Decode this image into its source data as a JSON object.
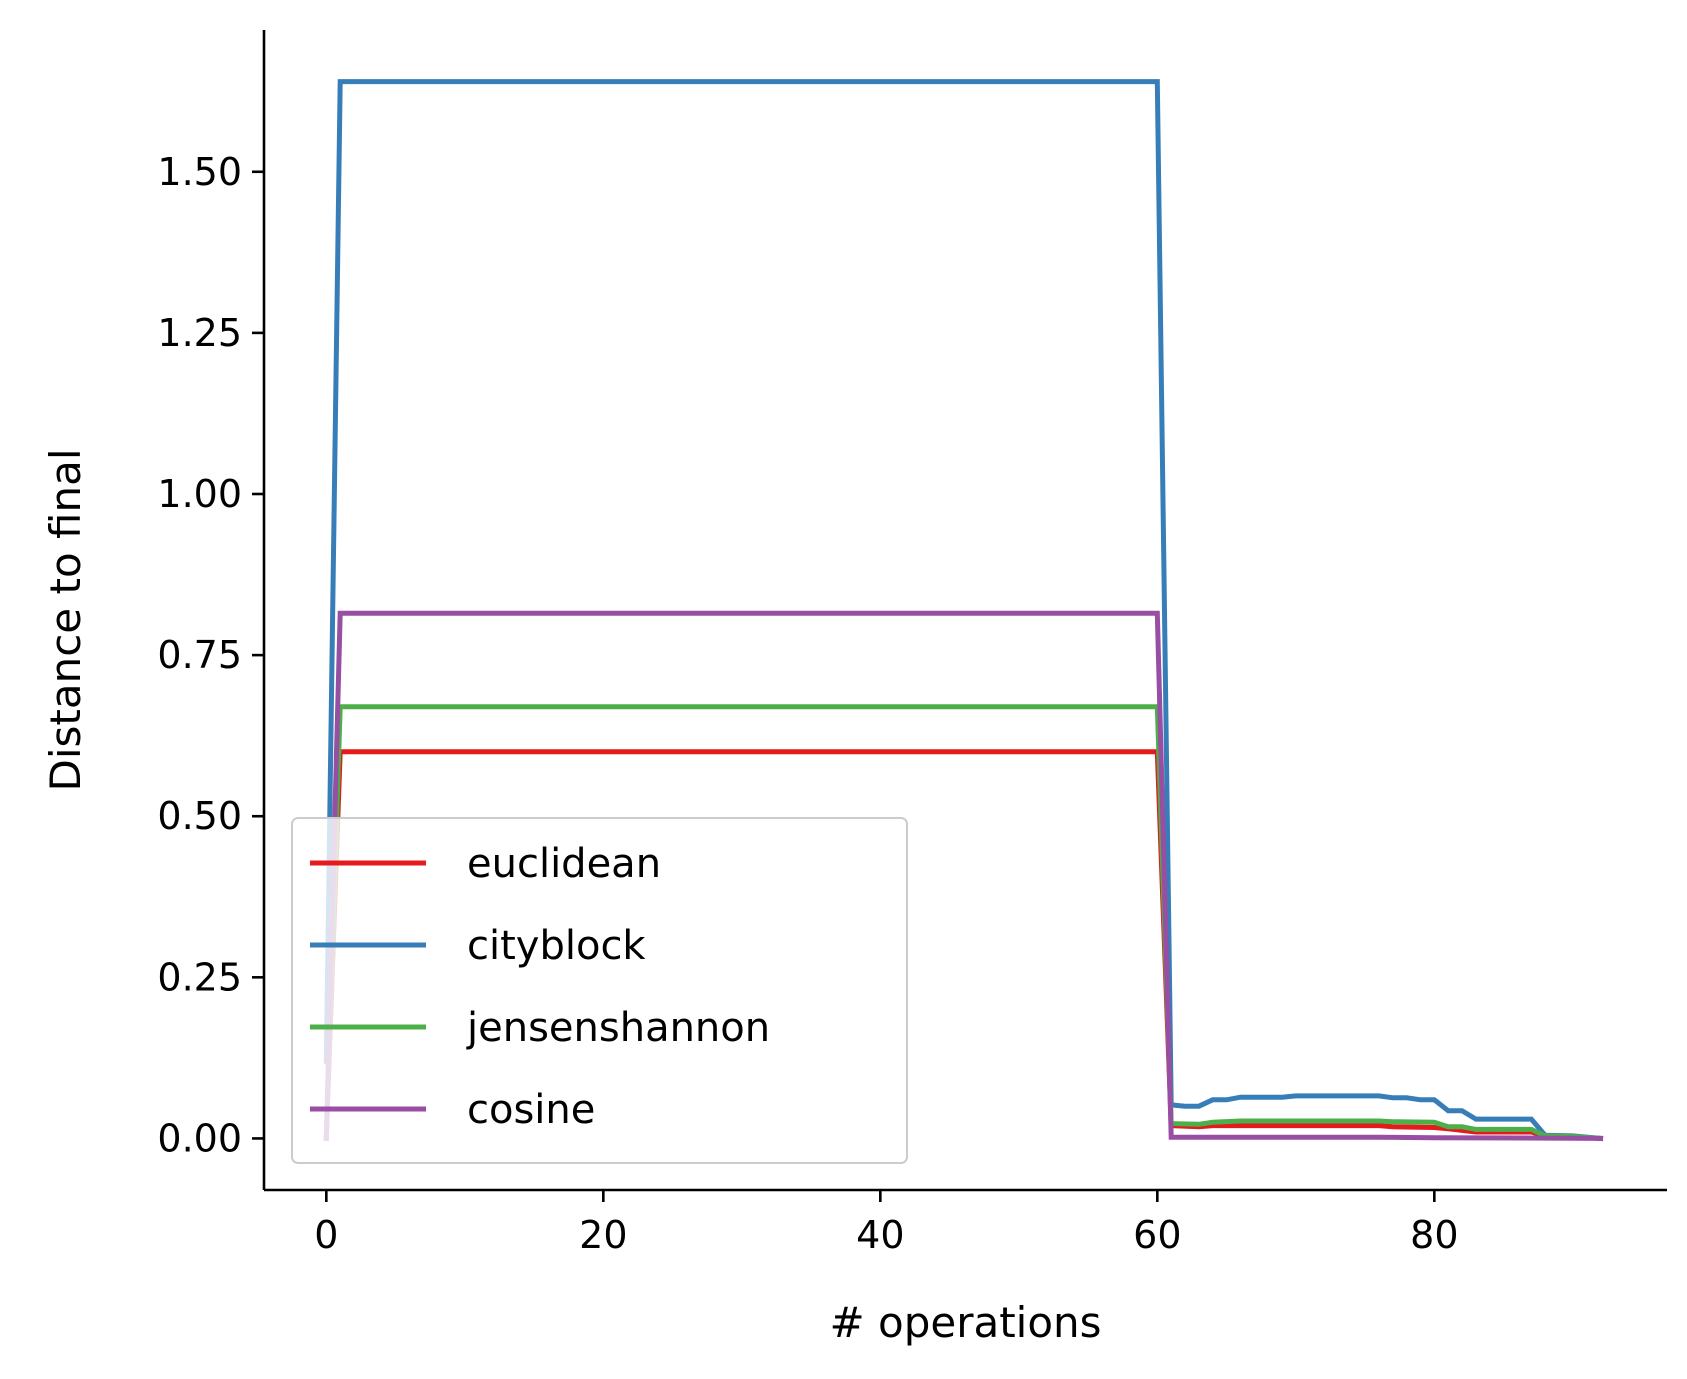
{
  "chart_data": {
    "type": "line",
    "title": "",
    "xlabel": "# operations",
    "ylabel": "Distance to final",
    "xlim": [
      -4.5,
      96.8
    ],
    "ylim": [
      -0.08,
      1.72
    ],
    "xticks": [
      0,
      20,
      40,
      60,
      80
    ],
    "yticks": [
      0.0,
      0.25,
      0.5,
      0.75,
      1.0,
      1.25,
      1.5
    ],
    "ytick_labels": [
      "0.00",
      "0.25",
      "0.50",
      "0.75",
      "1.00",
      "1.25",
      "1.50"
    ],
    "xtick_labels": [
      "0",
      "20",
      "40",
      "60",
      "80"
    ],
    "grid": false,
    "legend_position": "lower-left",
    "series": [
      {
        "name": "euclidean",
        "color": "#e41a1c",
        "points": [
          [
            0,
            0.0
          ],
          [
            1,
            0.6
          ],
          [
            60,
            0.6
          ],
          [
            61,
            0.02
          ],
          [
            63,
            0.018
          ],
          [
            64,
            0.02
          ],
          [
            76,
            0.02
          ],
          [
            77,
            0.018
          ],
          [
            80,
            0.017
          ],
          [
            81,
            0.015
          ],
          [
            83,
            0.01
          ],
          [
            87,
            0.01
          ],
          [
            88,
            0.004
          ],
          [
            90,
            0.003
          ],
          [
            92,
            0.0
          ]
        ]
      },
      {
        "name": "cityblock",
        "color": "#377eb8",
        "points": [
          [
            0,
            0.12
          ],
          [
            1,
            1.64
          ],
          [
            60,
            1.64
          ],
          [
            61,
            0.052
          ],
          [
            62,
            0.05
          ],
          [
            63,
            0.05
          ],
          [
            64,
            0.06
          ],
          [
            65,
            0.06
          ],
          [
            66,
            0.064
          ],
          [
            69,
            0.064
          ],
          [
            70,
            0.066
          ],
          [
            76,
            0.066
          ],
          [
            77,
            0.063
          ],
          [
            78,
            0.063
          ],
          [
            79,
            0.06
          ],
          [
            80,
            0.06
          ],
          [
            81,
            0.043
          ],
          [
            82,
            0.043
          ],
          [
            83,
            0.03
          ],
          [
            87,
            0.03
          ],
          [
            88,
            0.005
          ],
          [
            90,
            0.004
          ],
          [
            92,
            0.0
          ]
        ]
      },
      {
        "name": "jensenshannon",
        "color": "#4daf4a",
        "points": [
          [
            0,
            0.0
          ],
          [
            1,
            0.67
          ],
          [
            60,
            0.67
          ],
          [
            61,
            0.023
          ],
          [
            63,
            0.022
          ],
          [
            64,
            0.025
          ],
          [
            66,
            0.027
          ],
          [
            76,
            0.027
          ],
          [
            77,
            0.026
          ],
          [
            80,
            0.025
          ],
          [
            81,
            0.018
          ],
          [
            82,
            0.018
          ],
          [
            83,
            0.014
          ],
          [
            87,
            0.014
          ],
          [
            88,
            0.004
          ],
          [
            90,
            0.003
          ],
          [
            92,
            0.0
          ]
        ]
      },
      {
        "name": "cosine",
        "color": "#984ea3",
        "points": [
          [
            0,
            0.0
          ],
          [
            1,
            0.815
          ],
          [
            60,
            0.815
          ],
          [
            61,
            0.002
          ],
          [
            76,
            0.002
          ],
          [
            80,
            0.001
          ],
          [
            88,
            0.0005
          ],
          [
            92,
            0.0
          ]
        ]
      }
    ]
  }
}
